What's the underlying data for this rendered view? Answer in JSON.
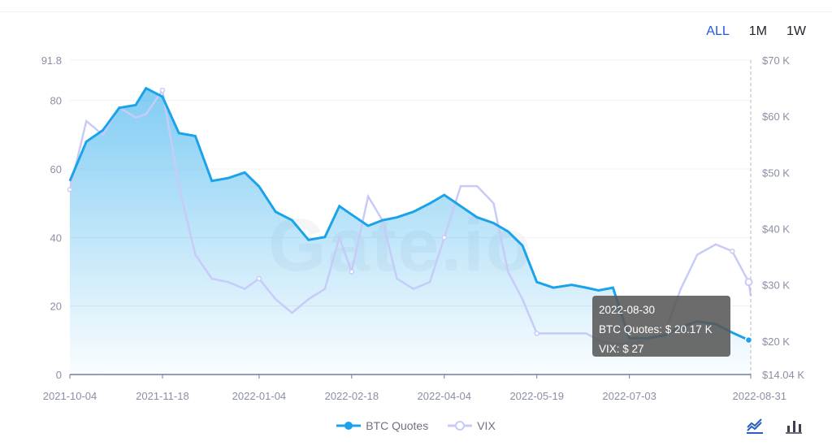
{
  "range_tabs": [
    {
      "label": "ALL",
      "active": true
    },
    {
      "label": "1M",
      "active": false
    },
    {
      "label": "1W",
      "active": false
    }
  ],
  "watermark": "Gate.io",
  "tooltip": {
    "date": "2022-08-30",
    "btc_line": "BTC Quotes: $ 20.17 K",
    "vix_line": "VIX: $ 27"
  },
  "legend": [
    {
      "name": "BTC Quotes",
      "color": "#1aa3ea"
    },
    {
      "name": "VIX",
      "color": "#c7cbf7"
    }
  ],
  "colors": {
    "btc": "#1aa3ea",
    "vix": "#c7cbf7",
    "accent": "#2354e6"
  },
  "tools": [
    {
      "icon": "line-chart-icon"
    },
    {
      "icon": "bar-chart-icon"
    }
  ],
  "chart_data": {
    "type": "line",
    "x_tick_labels": [
      "2021-10-04",
      "2021-11-18",
      "2022-01-04",
      "2022-02-18",
      "2022-04-04",
      "2022-05-19",
      "2022-07-03",
      "2022-08-31"
    ],
    "y_left_tick_labels": [
      "0",
      "20",
      "40",
      "60",
      "80",
      "91.8"
    ],
    "y_left_range": [
      0,
      91.8
    ],
    "y_right_tick_labels": [
      "$14.04 K",
      "$20 K",
      "$30 K",
      "$40 K",
      "$50 K",
      "$60 K",
      "$70 K"
    ],
    "y_right_range": [
      14.04,
      70
    ],
    "grid": "horizontal",
    "legend_position": "bottom",
    "series": [
      {
        "name": "BTC Quotes",
        "axis": "right",
        "unit": "$ K",
        "x": [
          "2021-10-04",
          "2021-10-12",
          "2021-10-20",
          "2021-10-28",
          "2021-11-05",
          "2021-11-10",
          "2021-11-18",
          "2021-11-26",
          "2021-12-04",
          "2021-12-12",
          "2021-12-20",
          "2021-12-28",
          "2022-01-04",
          "2022-01-12",
          "2022-01-20",
          "2022-01-28",
          "2022-02-05",
          "2022-02-12",
          "2022-02-18",
          "2022-02-26",
          "2022-03-05",
          "2022-03-12",
          "2022-03-20",
          "2022-03-28",
          "2022-04-04",
          "2022-04-12",
          "2022-04-20",
          "2022-04-28",
          "2022-05-05",
          "2022-05-12",
          "2022-05-19",
          "2022-05-27",
          "2022-06-05",
          "2022-06-12",
          "2022-06-18",
          "2022-06-25",
          "2022-07-03",
          "2022-07-12",
          "2022-07-20",
          "2022-07-28",
          "2022-08-05",
          "2022-08-14",
          "2022-08-22",
          "2022-08-30",
          "2022-08-31"
        ],
        "values": [
          48.5,
          55.5,
          57.5,
          61.5,
          62.0,
          65.0,
          63.5,
          57.0,
          56.5,
          48.5,
          49.0,
          50.0,
          47.5,
          43.0,
          41.5,
          38.0,
          38.5,
          44.0,
          42.5,
          40.5,
          41.5,
          42.0,
          43.0,
          44.5,
          46.0,
          44.0,
          42.0,
          41.0,
          39.5,
          37.0,
          30.5,
          29.5,
          30.0,
          29.5,
          29.0,
          29.5,
          20.5,
          20.5,
          21.0,
          22.5,
          23.5,
          23.0,
          21.5,
          20.17,
          20.2
        ]
      },
      {
        "name": "VIX",
        "axis": "left",
        "unit": "$",
        "x": [
          "2021-10-04",
          "2021-10-12",
          "2021-10-20",
          "2021-10-28",
          "2021-11-05",
          "2021-11-10",
          "2021-11-18",
          "2021-11-26",
          "2021-12-04",
          "2021-12-12",
          "2021-12-20",
          "2021-12-28",
          "2022-01-04",
          "2022-01-12",
          "2022-01-20",
          "2022-01-28",
          "2022-02-05",
          "2022-02-12",
          "2022-02-18",
          "2022-02-26",
          "2022-03-05",
          "2022-03-12",
          "2022-03-20",
          "2022-03-28",
          "2022-04-04",
          "2022-04-12",
          "2022-04-20",
          "2022-04-28",
          "2022-05-05",
          "2022-05-12",
          "2022-05-19",
          "2022-05-27",
          "2022-06-05",
          "2022-06-12",
          "2022-06-18",
          "2022-06-25",
          "2022-07-03",
          "2022-07-12",
          "2022-07-20",
          "2022-07-28",
          "2022-08-05",
          "2022-08-14",
          "2022-08-22",
          "2022-08-30",
          "2022-08-31"
        ],
        "values": [
          54,
          74,
          70,
          78,
          75,
          76,
          83,
          55,
          35,
          28,
          27,
          25,
          28,
          22,
          18,
          22,
          25,
          40,
          30,
          52,
          45,
          28,
          25,
          27,
          40,
          55,
          55,
          50,
          30,
          22,
          12,
          12,
          12,
          12,
          10,
          9,
          9,
          10,
          12,
          25,
          35,
          38,
          36,
          27,
          23
        ]
      }
    ]
  }
}
